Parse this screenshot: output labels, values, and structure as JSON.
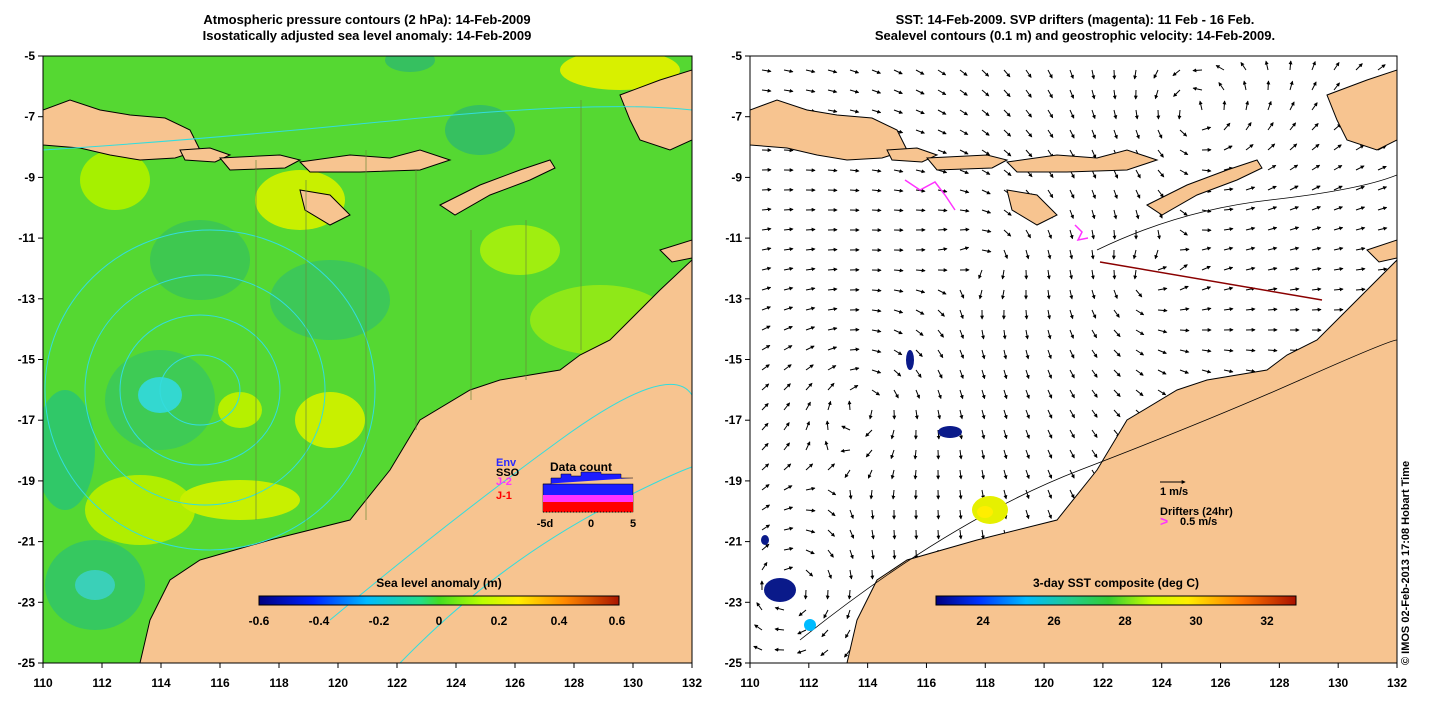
{
  "left_panel": {
    "title_line1": "Atmospheric pressure contours (2 hPa): 14-Feb-2009",
    "title_line2": "Isostatically adjusted sea level anomaly: 14-Feb-2009",
    "colorbar_title": "Sea level anomaly (m)",
    "colorbar_ticks": [
      "-0.6",
      "-0.4",
      "-0.2",
      "0",
      "0.2",
      "0.4",
      "0.6"
    ],
    "legend": {
      "title": "Data count",
      "satellites": [
        {
          "label": "Env",
          "color": "#2a2aff"
        },
        {
          "label": "SSO",
          "color": "#000000"
        },
        {
          "label": "J-2",
          "color": "#ff33ff"
        },
        {
          "label": "J-1",
          "color": "#ff0000"
        }
      ],
      "x_ticks": [
        "-5d",
        "0",
        "5"
      ]
    }
  },
  "right_panel": {
    "title_line1": "SST: 14-Feb-2009. SVP drifters (magenta): 11 Feb - 16 Feb.",
    "title_line2": "Sealevel contours (0.1 m) and geostrophic velocity: 14-Feb-2009.",
    "colorbar_title": "3-day SST composite (deg C)",
    "colorbar_ticks": [
      "24",
      "26",
      "28",
      "30",
      "32"
    ],
    "velocity_scale": "1 m/s",
    "drifters_label": "Drifters (24hr)",
    "drifters_scale_symbol": ">",
    "drifters_scale": "0.5 m/s"
  },
  "map_axes": {
    "x_ticks": [
      "110",
      "112",
      "114",
      "116",
      "118",
      "120",
      "122",
      "124",
      "126",
      "128",
      "130",
      "132"
    ],
    "y_ticks": [
      "-5",
      "-7",
      "-9",
      "-11",
      "-13",
      "-15",
      "-17",
      "-19",
      "-21",
      "-23",
      "-25"
    ]
  },
  "credit": "© IMOS 02-Feb-2013 17:08 Hobart Time",
  "colors": {
    "land": "#f7c490",
    "ocean_sla": "#55d832",
    "coast": "#000000",
    "pressure_contour": "#33dddd",
    "drifter": "#ff33ff"
  }
}
